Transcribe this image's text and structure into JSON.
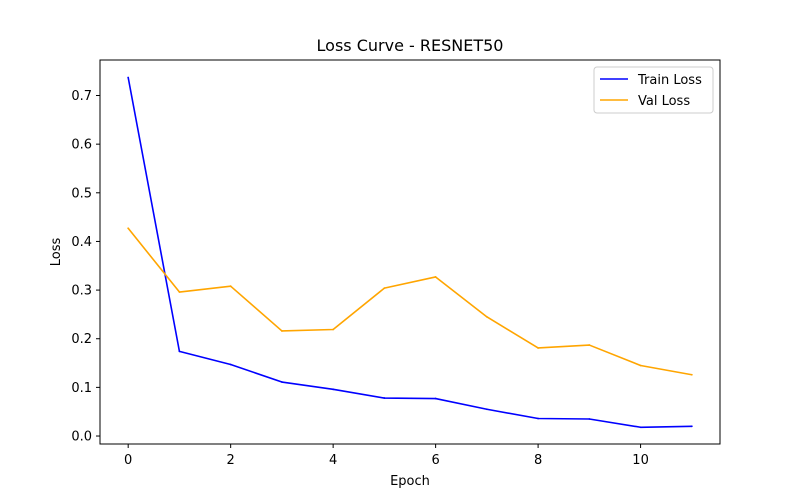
{
  "chart_data": {
    "type": "line",
    "title": "Loss Curve - RESNET50",
    "xlabel": "Epoch",
    "ylabel": "Loss",
    "x": [
      0,
      1,
      2,
      3,
      4,
      5,
      6,
      7,
      8,
      9,
      10,
      11
    ],
    "series": [
      {
        "name": "Train Loss",
        "color": "#0000ff",
        "values": [
          0.737,
          0.174,
          0.147,
          0.111,
          0.096,
          0.078,
          0.077,
          0.055,
          0.036,
          0.035,
          0.018,
          0.02
        ]
      },
      {
        "name": "Val Loss",
        "color": "#ffa500",
        "values": [
          0.427,
          0.296,
          0.308,
          0.216,
          0.219,
          0.304,
          0.327,
          0.245,
          0.181,
          0.187,
          0.145,
          0.126
        ]
      }
    ],
    "xlim": [
      -0.55,
      11.55
    ],
    "ylim": [
      -0.0164,
      0.773
    ],
    "xticks": [
      0,
      2,
      4,
      6,
      8,
      10
    ],
    "xtick_labels": [
      "0",
      "2",
      "4",
      "6",
      "8",
      "10"
    ],
    "yticks": [
      0.0,
      0.1,
      0.2,
      0.3,
      0.4,
      0.5,
      0.6,
      0.7
    ],
    "ytick_labels": [
      "0.0",
      "0.1",
      "0.2",
      "0.3",
      "0.4",
      "0.5",
      "0.6",
      "0.7"
    ],
    "grid": false,
    "legend": "top-right"
  }
}
